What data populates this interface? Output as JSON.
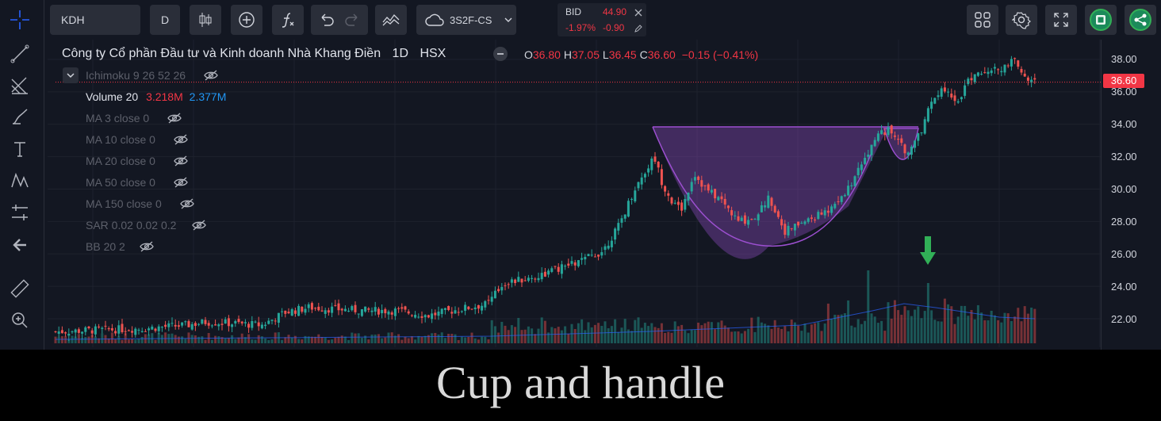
{
  "toolbar": {
    "symbol": "KDH",
    "interval": "D",
    "layout_name": "3S2F-CS",
    "bid_label": "BID",
    "bid_price": "44.90",
    "bid_pct": "-1.97%",
    "bid_change": "-0.90"
  },
  "legend": {
    "company": "Công ty Cổ phần Đầu tư và Kinh doanh Nhà Khang Điền",
    "interval": "1D",
    "exchange": "HSX",
    "o_label": "O",
    "o": "36.80",
    "h_label": "H",
    "h": "37.05",
    "l_label": "L",
    "l": "36.45",
    "c_label": "C",
    "c": "36.60",
    "change": "−0.15 (−0.41%)",
    "indicators": [
      "Ichimoku 9 26 52 26",
      "MA 3 close 0",
      "MA 10 close 0",
      "MA 20 close 0",
      "MA 50 close 0",
      "MA 150 close 0",
      "SAR 0.02 0.02 0.2",
      "BB 20 2"
    ],
    "volume_label": "Volume 20",
    "volume_value": "3.218M",
    "volume_ma": "2.377M"
  },
  "price_axis": {
    "ticks": [
      "38.00",
      "36.00",
      "34.00",
      "32.00",
      "30.00",
      "28.00",
      "26.00",
      "24.00",
      "22.00"
    ],
    "last_price": "36.60"
  },
  "caption": "Cup and handle",
  "colors": {
    "up": "#26a69a",
    "down": "#ef5350",
    "accent": "#2962ff",
    "pattern": "#9c4fd0",
    "arrow": "#31b057"
  }
}
